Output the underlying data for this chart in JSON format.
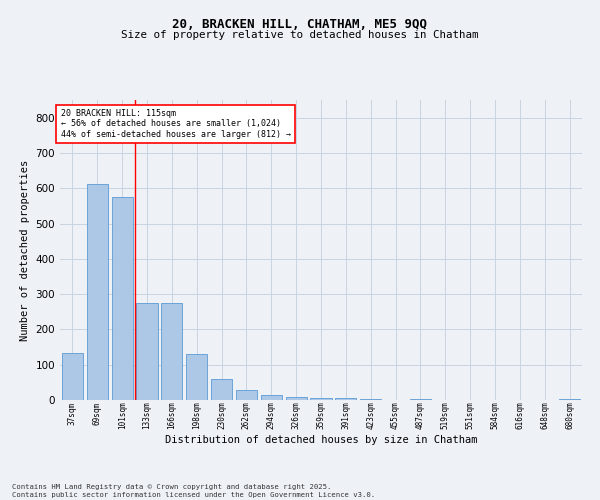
{
  "title1": "20, BRACKEN HILL, CHATHAM, ME5 9QQ",
  "title2": "Size of property relative to detached houses in Chatham",
  "xlabel": "Distribution of detached houses by size in Chatham",
  "ylabel": "Number of detached properties",
  "footer": "Contains HM Land Registry data © Crown copyright and database right 2025.\nContains public sector information licensed under the Open Government Licence v3.0.",
  "categories": [
    "37sqm",
    "69sqm",
    "101sqm",
    "133sqm",
    "166sqm",
    "198sqm",
    "230sqm",
    "262sqm",
    "294sqm",
    "326sqm",
    "359sqm",
    "391sqm",
    "423sqm",
    "455sqm",
    "487sqm",
    "519sqm",
    "551sqm",
    "584sqm",
    "616sqm",
    "648sqm",
    "680sqm"
  ],
  "values": [
    133,
    611,
    575,
    275,
    275,
    131,
    60,
    28,
    15,
    8,
    6,
    5,
    4,
    0,
    3,
    0,
    0,
    0,
    0,
    0,
    4
  ],
  "bar_color": "#adc8e6",
  "bar_edge_color": "#5b9bd5",
  "vline_x": 2.5,
  "vline_color": "red",
  "annotation_text": "20 BRACKEN HILL: 115sqm\n← 56% of detached houses are smaller (1,024)\n44% of semi-detached houses are larger (812) →",
  "annotation_box_color": "white",
  "annotation_box_edge": "red",
  "background_color": "#eef2f7",
  "grid_color": "#c8d4e0",
  "ylim": [
    0,
    850
  ],
  "yticks": [
    0,
    100,
    200,
    300,
    400,
    500,
    600,
    700,
    800
  ]
}
